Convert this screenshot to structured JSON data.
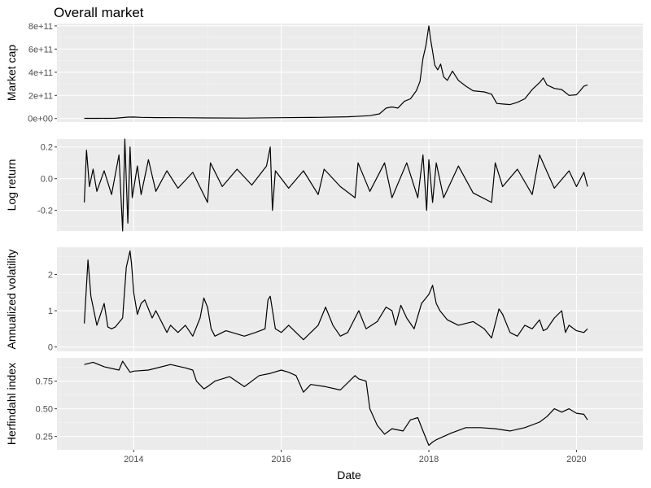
{
  "chart_data": {
    "type": "line",
    "title": "Overall market",
    "xlabel": "Date",
    "x_ticks": [
      "2014",
      "2016",
      "2018",
      "2020"
    ],
    "x_tick_values": [
      2014.0,
      2016.0,
      2018.0,
      2020.0
    ],
    "xlim": [
      2012.96,
      2020.9
    ],
    "grid": true,
    "legend": "none",
    "line_color": "#000000",
    "panel_background": "#ebebeb",
    "panels": [
      {
        "ylabel": "Market cap",
        "ylim": [
          -30000000000.0,
          820000000000.0
        ],
        "y_tick_labels": [
          "0e+00",
          "2e+11",
          "4e+11",
          "6e+11",
          "8e+11"
        ],
        "y_tick_values": [
          0,
          200000000000.0,
          400000000000.0,
          600000000000.0,
          800000000000.0
        ],
        "series": [
          {
            "x": [
              2013.33,
              2013.5,
              2013.75,
              2013.92,
              2014.0,
              2014.1,
              2014.3,
              2014.6,
              2015.0,
              2015.5,
              2016.0,
              2016.5,
              2016.9,
              2017.0,
              2017.2,
              2017.33,
              2017.42,
              2017.5,
              2017.58,
              2017.67,
              2017.75,
              2017.83,
              2017.88,
              2017.92,
              2017.96,
              2018.0,
              2018.02,
              2018.05,
              2018.08,
              2018.12,
              2018.16,
              2018.2,
              2018.25,
              2018.32,
              2018.4,
              2018.5,
              2018.6,
              2018.75,
              2018.85,
              2018.92,
              2019.0,
              2019.1,
              2019.2,
              2019.3,
              2019.4,
              2019.5,
              2019.55,
              2019.6,
              2019.7,
              2019.8,
              2019.9,
              2020.0,
              2020.05,
              2020.1,
              2020.15
            ],
            "y": [
              1500000000.0,
              1500000000.0,
              2000000000.0,
              12000000000.0,
              13000000000.0,
              10000000000.0,
              8000000000.0,
              7000000000.0,
              5000000000.0,
              4000000000.0,
              7000000000.0,
              10000000000.0,
              15000000000.0,
              18000000000.0,
              25000000000.0,
              40000000000.0,
              90000000000.0,
              100000000000.0,
              90000000000.0,
              150000000000.0,
              170000000000.0,
              240000000000.0,
              320000000000.0,
              520000000000.0,
              630000000000.0,
              800000000000.0,
              700000000000.0,
              580000000000.0,
              460000000000.0,
              420000000000.0,
              470000000000.0,
              360000000000.0,
              330000000000.0,
              410000000000.0,
              330000000000.0,
              280000000000.0,
              240000000000.0,
              230000000000.0,
              210000000000.0,
              130000000000.0,
              125000000000.0,
              120000000000.0,
              140000000000.0,
              170000000000.0,
              250000000000.0,
              310000000000.0,
              350000000000.0,
              290000000000.0,
              260000000000.0,
              250000000000.0,
              200000000000.0,
              205000000000.0,
              240000000000.0,
              280000000000.0,
              290000000000.0
            ]
          }
        ]
      },
      {
        "ylabel": "Log return",
        "ylim": [
          -0.33,
          0.25
        ],
        "y_tick_labels": [
          "-0.2",
          "0.0",
          "0.2"
        ],
        "y_tick_values": [
          -0.2,
          0.0,
          0.2
        ],
        "series": [
          {
            "x": [
              2013.33,
              2013.36,
              2013.4,
              2013.45,
              2013.5,
              2013.6,
              2013.7,
              2013.8,
              2013.85,
              2013.88,
              2013.92,
              2013.95,
              2013.98,
              2014.05,
              2014.1,
              2014.2,
              2014.3,
              2014.45,
              2014.6,
              2014.8,
              2015.0,
              2015.04,
              2015.2,
              2015.4,
              2015.6,
              2015.8,
              2015.85,
              2015.88,
              2015.92,
              2016.1,
              2016.3,
              2016.5,
              2016.58,
              2016.8,
              2017.0,
              2017.04,
              2017.2,
              2017.4,
              2017.5,
              2017.7,
              2017.85,
              2017.92,
              2017.97,
              2018.0,
              2018.05,
              2018.1,
              2018.2,
              2018.4,
              2018.6,
              2018.85,
              2018.9,
              2019.0,
              2019.2,
              2019.4,
              2019.5,
              2019.7,
              2019.9,
              2020.0,
              2020.1,
              2020.15
            ],
            "y": [
              -0.15,
              0.18,
              -0.05,
              0.06,
              -0.08,
              0.05,
              -0.1,
              0.15,
              -0.33,
              0.25,
              -0.28,
              0.2,
              -0.12,
              0.08,
              -0.1,
              0.12,
              -0.08,
              0.05,
              -0.06,
              0.04,
              -0.15,
              0.1,
              -0.05,
              0.06,
              -0.04,
              0.08,
              0.2,
              -0.2,
              0.05,
              -0.06,
              0.05,
              -0.1,
              0.06,
              -0.05,
              -0.12,
              0.1,
              -0.08,
              0.1,
              -0.12,
              0.1,
              -0.12,
              0.15,
              -0.2,
              0.12,
              -0.15,
              0.1,
              -0.12,
              0.08,
              -0.09,
              -0.15,
              0.1,
              -0.05,
              0.06,
              -0.1,
              0.15,
              -0.06,
              0.05,
              -0.05,
              0.04,
              -0.05
            ]
          }
        ]
      },
      {
        "ylabel": "Annualized volatility",
        "ylim": [
          -0.12,
          2.75
        ],
        "y_tick_labels": [
          "0",
          "1",
          "2"
        ],
        "y_tick_values": [
          0,
          1,
          2
        ],
        "series": [
          {
            "x": [
              2013.33,
              2013.38,
              2013.42,
              2013.5,
              2013.55,
              2013.6,
              2013.65,
              2013.7,
              2013.75,
              2013.85,
              2013.9,
              2013.95,
              2013.97,
              2014.0,
              2014.05,
              2014.1,
              2014.15,
              2014.25,
              2014.3,
              2014.4,
              2014.45,
              2014.5,
              2014.6,
              2014.7,
              2014.8,
              2014.9,
              2014.95,
              2015.0,
              2015.05,
              2015.1,
              2015.25,
              2015.5,
              2015.65,
              2015.78,
              2015.82,
              2015.85,
              2015.92,
              2016.0,
              2016.1,
              2016.3,
              2016.4,
              2016.5,
              2016.6,
              2016.7,
              2016.8,
              2016.9,
              2017.0,
              2017.05,
              2017.15,
              2017.3,
              2017.42,
              2017.5,
              2017.55,
              2017.62,
              2017.7,
              2017.8,
              2017.9,
              2018.0,
              2018.05,
              2018.1,
              2018.15,
              2018.25,
              2018.4,
              2018.6,
              2018.75,
              2018.85,
              2018.95,
              2019.0,
              2019.1,
              2019.2,
              2019.3,
              2019.4,
              2019.5,
              2019.55,
              2019.6,
              2019.7,
              2019.8,
              2019.85,
              2019.9,
              2020.0,
              2020.1,
              2020.15
            ],
            "y": [
              0.65,
              2.4,
              1.4,
              0.6,
              0.9,
              1.2,
              0.55,
              0.5,
              0.55,
              0.8,
              2.2,
              2.65,
              2.3,
              1.5,
              0.9,
              1.2,
              1.3,
              0.8,
              1.0,
              0.6,
              0.4,
              0.6,
              0.4,
              0.6,
              0.3,
              0.8,
              1.35,
              1.1,
              0.5,
              0.3,
              0.45,
              0.3,
              0.4,
              0.5,
              1.3,
              1.4,
              0.5,
              0.4,
              0.6,
              0.2,
              0.4,
              0.6,
              1.1,
              0.6,
              0.3,
              0.4,
              0.8,
              1.0,
              0.5,
              0.7,
              1.1,
              1.0,
              0.6,
              1.15,
              0.8,
              0.5,
              1.2,
              1.45,
              1.7,
              1.2,
              1.0,
              0.75,
              0.6,
              0.7,
              0.5,
              0.25,
              1.05,
              0.9,
              0.4,
              0.3,
              0.6,
              0.5,
              0.75,
              0.45,
              0.5,
              0.8,
              1.0,
              0.4,
              0.6,
              0.45,
              0.4,
              0.5
            ]
          }
        ]
      },
      {
        "ylabel": "Herfindahl index",
        "ylim": [
          0.13,
          0.96
        ],
        "y_tick_labels": [
          "0.25",
          "0.50",
          "0.75"
        ],
        "y_tick_values": [
          0.25,
          0.5,
          0.75
        ],
        "series": [
          {
            "x": [
              2013.33,
              2013.45,
              2013.6,
              2013.8,
              2013.85,
              2013.95,
              2014.0,
              2014.2,
              2014.5,
              2014.7,
              2014.8,
              2014.85,
              2014.95,
              2015.0,
              2015.1,
              2015.3,
              2015.5,
              2015.7,
              2015.85,
              2016.0,
              2016.1,
              2016.2,
              2016.3,
              2016.4,
              2016.6,
              2016.8,
              2017.0,
              2017.05,
              2017.15,
              2017.2,
              2017.3,
              2017.4,
              2017.5,
              2017.65,
              2017.75,
              2017.85,
              2017.92,
              2018.0,
              2018.05,
              2018.1,
              2018.3,
              2018.5,
              2018.7,
              2018.9,
              2019.1,
              2019.3,
              2019.5,
              2019.6,
              2019.7,
              2019.8,
              2019.9,
              2020.0,
              2020.1,
              2020.15
            ],
            "y": [
              0.9,
              0.92,
              0.88,
              0.85,
              0.93,
              0.83,
              0.84,
              0.85,
              0.9,
              0.87,
              0.85,
              0.75,
              0.68,
              0.7,
              0.75,
              0.79,
              0.7,
              0.8,
              0.82,
              0.85,
              0.83,
              0.8,
              0.65,
              0.72,
              0.7,
              0.67,
              0.8,
              0.77,
              0.75,
              0.5,
              0.35,
              0.27,
              0.32,
              0.3,
              0.4,
              0.42,
              0.3,
              0.17,
              0.2,
              0.22,
              0.28,
              0.33,
              0.33,
              0.32,
              0.3,
              0.33,
              0.38,
              0.43,
              0.5,
              0.47,
              0.5,
              0.46,
              0.45,
              0.4
            ]
          }
        ]
      }
    ]
  }
}
